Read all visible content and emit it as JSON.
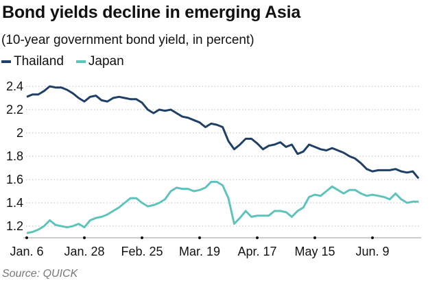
{
  "chart_data": {
    "type": "line",
    "title": "Bond yields decline in emerging Asia",
    "subtitle": "(10-year government bond yield, in percent)",
    "source": "Source: QUICK",
    "ylim": [
      1.1,
      2.45
    ],
    "yticks": [
      1.2,
      1.4,
      1.6,
      1.8,
      2,
      2.2,
      2.4
    ],
    "ytick_labels": [
      "1.2",
      "1.4",
      "1.6",
      "1.8",
      "2",
      "2.2",
      "2.4"
    ],
    "grid": "horizontal dotted",
    "legend": "top-left",
    "xticks": [
      {
        "index": 0,
        "label": "Jan. 6"
      },
      {
        "index": 10,
        "label": "Jan. 28"
      },
      {
        "index": 20,
        "label": "Feb. 25"
      },
      {
        "index": 30,
        "label": "Mar. 19"
      },
      {
        "index": 40,
        "label": "Apr. 17"
      },
      {
        "index": 50,
        "label": "May 15"
      },
      {
        "index": 60,
        "label": "Jun. 9"
      }
    ],
    "series": [
      {
        "name": "Thailand",
        "color": "#1f3f66",
        "values": [
          2.31,
          2.33,
          2.33,
          2.36,
          2.4,
          2.39,
          2.39,
          2.37,
          2.34,
          2.3,
          2.27,
          2.31,
          2.32,
          2.28,
          2.27,
          2.3,
          2.31,
          2.3,
          2.29,
          2.29,
          2.26,
          2.2,
          2.17,
          2.2,
          2.19,
          2.2,
          2.17,
          2.14,
          2.13,
          2.11,
          2.09,
          2.05,
          2.08,
          2.07,
          2.05,
          1.93,
          1.86,
          1.9,
          1.95,
          1.95,
          1.91,
          1.86,
          1.89,
          1.9,
          1.92,
          1.88,
          1.9,
          1.82,
          1.84,
          1.9,
          1.88,
          1.86,
          1.85,
          1.87,
          1.85,
          1.83,
          1.8,
          1.78,
          1.74,
          1.69,
          1.67,
          1.68,
          1.68,
          1.68,
          1.69,
          1.67,
          1.66,
          1.67,
          1.61
        ]
      },
      {
        "name": "Japan",
        "color": "#5ec4bb",
        "values": [
          1.14,
          1.15,
          1.17,
          1.2,
          1.25,
          1.21,
          1.2,
          1.19,
          1.2,
          1.22,
          1.19,
          1.25,
          1.27,
          1.28,
          1.3,
          1.33,
          1.36,
          1.4,
          1.44,
          1.44,
          1.4,
          1.37,
          1.38,
          1.4,
          1.43,
          1.5,
          1.53,
          1.52,
          1.52,
          1.5,
          1.51,
          1.53,
          1.58,
          1.58,
          1.55,
          1.44,
          1.22,
          1.27,
          1.33,
          1.28,
          1.29,
          1.29,
          1.29,
          1.33,
          1.33,
          1.32,
          1.28,
          1.33,
          1.36,
          1.45,
          1.47,
          1.46,
          1.5,
          1.54,
          1.51,
          1.48,
          1.51,
          1.51,
          1.48,
          1.46,
          1.47,
          1.46,
          1.45,
          1.43,
          1.48,
          1.43,
          1.4,
          1.41,
          1.41
        ]
      }
    ]
  }
}
